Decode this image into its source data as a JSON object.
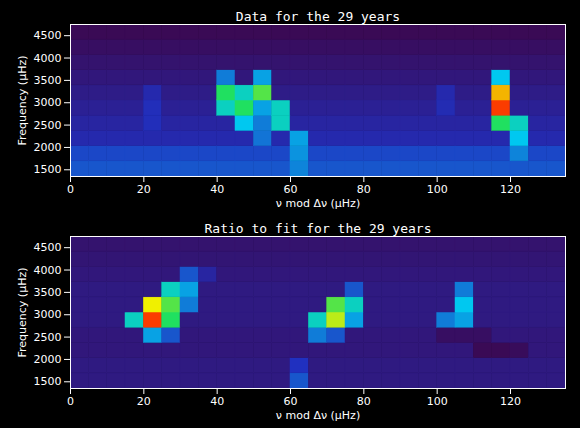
{
  "chart_data": [
    {
      "type": "heatmap",
      "title": "Data for the 29 years",
      "x_label": "ν mod Δν (μHz)",
      "y_label": "Frequency (μHz)",
      "xlim": [
        0,
        135
      ],
      "xticks": [
        0,
        20,
        40,
        60,
        80,
        100,
        120
      ],
      "ylim": [
        1350,
        4750
      ],
      "yticks": [
        1500,
        2000,
        2500,
        3000,
        3500,
        4000,
        4500
      ],
      "clim": [
        0,
        10
      ],
      "cells": {
        "x_edges": [
          0,
          5,
          10,
          15,
          20,
          25,
          30,
          35,
          40,
          45,
          50,
          55,
          60,
          65,
          70,
          75,
          80,
          85,
          90,
          95,
          100,
          105,
          110,
          115,
          120,
          125,
          130,
          135
        ],
        "y_edges": [
          1350,
          1690,
          2030,
          2370,
          2710,
          3050,
          3390,
          3730,
          4070,
          4410,
          4750
        ],
        "values": [
          [
            3,
            3,
            3,
            3,
            3,
            3,
            3,
            3,
            3,
            3,
            3,
            3,
            3.6,
            3,
            3,
            3,
            3,
            3,
            3,
            3,
            3,
            3,
            3,
            3,
            3,
            3,
            3
          ],
          [
            2.8,
            2.8,
            2.8,
            2.8,
            2.8,
            2.8,
            2.8,
            2.8,
            2.8,
            2.8,
            2.8,
            2.8,
            3.8,
            2.8,
            2.8,
            2.8,
            2.8,
            2.8,
            2.8,
            2.8,
            2.8,
            2.8,
            2.8,
            2.8,
            3.6,
            2.8,
            2.8
          ],
          [
            2.2,
            2.2,
            2.2,
            2.2,
            2.2,
            2.2,
            2.2,
            2.2,
            2.2,
            2.2,
            3.4,
            2.2,
            4,
            2.2,
            2.2,
            2.2,
            2.2,
            2.2,
            2.2,
            2.2,
            2.2,
            2.2,
            2.2,
            2.2,
            4.5,
            2.2,
            2.2
          ],
          [
            2,
            2,
            2,
            2,
            2.4,
            2,
            2,
            2,
            2,
            4.5,
            3.5,
            5,
            2,
            2,
            2,
            2,
            2,
            2,
            2,
            2,
            2,
            2,
            2,
            6,
            5,
            2,
            2
          ],
          [
            1.8,
            1.8,
            1.8,
            1.8,
            2.4,
            1.8,
            1.8,
            1.8,
            5,
            6,
            4,
            5,
            1.8,
            1.8,
            1.8,
            1.8,
            1.8,
            1.8,
            1.8,
            1.8,
            2.3,
            1.8,
            1.8,
            9.5,
            1.8,
            1.8,
            1.8
          ],
          [
            1.6,
            1.6,
            1.6,
            1.6,
            2.2,
            1.6,
            1.6,
            1.6,
            6,
            5,
            6.5,
            1.6,
            1.6,
            1.6,
            1.6,
            1.6,
            1.6,
            1.6,
            1.6,
            1.6,
            2.2,
            1.6,
            1.6,
            8.5,
            1.6,
            1.6,
            1.6
          ],
          [
            1.4,
            1.4,
            1.4,
            1.4,
            1.4,
            1.4,
            1.4,
            1.4,
            3.5,
            1.4,
            4,
            1.4,
            1.4,
            1.4,
            1.4,
            1.4,
            1.4,
            1.4,
            1.4,
            1.4,
            1.4,
            1.4,
            1.4,
            4.5,
            1.4,
            1.4,
            1.4
          ],
          [
            1.2,
            1.2,
            1.2,
            1.2,
            1.2,
            1.2,
            1.2,
            1.2,
            1.2,
            1.2,
            1.2,
            1.2,
            1.2,
            1.2,
            1.2,
            1.2,
            1.2,
            1.2,
            1.2,
            1.2,
            1.2,
            1.2,
            1.2,
            1.2,
            1.2,
            1.2,
            1.2
          ],
          [
            1,
            1,
            1,
            1,
            1,
            1,
            1,
            1,
            1,
            1,
            1,
            1,
            1,
            1,
            1,
            1,
            1,
            1,
            1,
            1,
            1,
            1,
            1,
            1,
            1,
            1,
            1
          ],
          [
            0.8,
            0.8,
            0.8,
            0.8,
            0.8,
            0.8,
            0.8,
            0.8,
            0.8,
            0.8,
            0.8,
            0.8,
            0.8,
            0.8,
            0.8,
            0.8,
            0.8,
            0.8,
            0.8,
            0.8,
            0.8,
            0.8,
            0.8,
            0.8,
            0.8,
            0.8,
            0.8
          ]
        ]
      }
    },
    {
      "type": "heatmap",
      "title": "Ratio to fit for the 29 years",
      "x_label": "ν mod Δν (μHz)",
      "y_label": "Frequency (μHz)",
      "xlim": [
        0,
        135
      ],
      "xticks": [
        0,
        20,
        40,
        60,
        80,
        100,
        120
      ],
      "ylim": [
        1350,
        4750
      ],
      "yticks": [
        1500,
        2000,
        2500,
        3000,
        3500,
        4000,
        4500
      ],
      "clim": [
        0,
        10
      ],
      "cells": {
        "x_edges": [
          0,
          5,
          10,
          15,
          20,
          25,
          30,
          35,
          40,
          45,
          50,
          55,
          60,
          65,
          70,
          75,
          80,
          85,
          90,
          95,
          100,
          105,
          110,
          115,
          120,
          125,
          130,
          135
        ],
        "y_edges": [
          1350,
          1690,
          2030,
          2370,
          2710,
          3050,
          3390,
          3730,
          4070,
          4410,
          4750
        ],
        "values": [
          [
            1.5,
            1.5,
            1.5,
            1.5,
            1.5,
            1.5,
            1.5,
            1.5,
            1.5,
            1.5,
            1.5,
            1.5,
            3,
            1.5,
            1.5,
            1.5,
            1.5,
            1.5,
            1.5,
            1.5,
            1.5,
            1.5,
            1.5,
            1.5,
            1.5,
            1.5,
            1.5
          ],
          [
            1.5,
            1.5,
            1.5,
            1.5,
            1.5,
            1.5,
            1.5,
            1.5,
            1.5,
            1.5,
            1.5,
            1.5,
            2.5,
            1.5,
            1.5,
            1.5,
            1.5,
            1.5,
            1.5,
            1.5,
            1.5,
            1.5,
            1.5,
            1.5,
            1.5,
            1.5,
            1.5
          ],
          [
            1.4,
            1.4,
            1.4,
            1.4,
            1.4,
            1.4,
            1.4,
            1.4,
            1.4,
            1.4,
            1.4,
            1.4,
            1.4,
            1.4,
            1.4,
            1.4,
            1.4,
            1.4,
            1.4,
            1.4,
            1.4,
            1.4,
            0.8,
            0.8,
            0.9,
            1.4,
            1.4
          ],
          [
            1.4,
            1.4,
            1.4,
            1.4,
            4,
            3,
            1.4,
            1.4,
            1.4,
            1.4,
            1.4,
            1.4,
            1.4,
            3.5,
            3,
            1.4,
            1.4,
            1.4,
            1.4,
            1.4,
            1,
            1,
            1,
            1.4,
            1.4,
            1.4,
            1.4
          ],
          [
            1.5,
            1.5,
            1.5,
            5,
            9.5,
            6,
            1.5,
            1.5,
            1.5,
            1.5,
            1.5,
            1.5,
            1.5,
            5,
            7.5,
            4,
            1.5,
            1.5,
            1.5,
            1.5,
            3.5,
            4,
            1.5,
            1.5,
            1.5,
            1.5,
            1.5
          ],
          [
            1.5,
            1.5,
            1.5,
            1.5,
            8,
            6.5,
            3.5,
            1.5,
            1.5,
            1.5,
            1.5,
            1.5,
            1.5,
            1.5,
            6.5,
            5,
            1.5,
            1.5,
            1.5,
            1.5,
            1.5,
            4.5,
            1.5,
            1.5,
            1.5,
            1.5,
            1.5
          ],
          [
            1.5,
            1.5,
            1.5,
            1.5,
            1.5,
            5,
            4,
            1.5,
            1.5,
            1.5,
            1.5,
            1.5,
            1.5,
            1.5,
            1.5,
            3,
            1.5,
            1.5,
            1.5,
            1.5,
            1.5,
            3.5,
            1.5,
            1.5,
            1.5,
            1.5,
            1.5
          ],
          [
            1.4,
            1.4,
            1.4,
            1.4,
            1.4,
            1.4,
            3,
            2,
            1.4,
            1.4,
            1.4,
            1.4,
            1.4,
            1.4,
            1.4,
            1.4,
            1.4,
            1.4,
            1.4,
            1.4,
            1.4,
            1.4,
            1.4,
            1.4,
            1.4,
            1.4,
            1.4
          ],
          [
            1.3,
            1.3,
            1.3,
            1.3,
            1.3,
            1.3,
            1.3,
            1.3,
            1.3,
            1.3,
            1.3,
            1.3,
            1.3,
            1.3,
            1.3,
            1.3,
            1.3,
            1.3,
            1.3,
            1.3,
            1.3,
            1.3,
            1.3,
            1.3,
            1.3,
            1.3,
            1.3
          ],
          [
            1.2,
            1.2,
            1.2,
            1.2,
            1.2,
            1.2,
            1.2,
            1.2,
            1.2,
            1.2,
            1.2,
            1.2,
            1.2,
            1.2,
            1.2,
            1.2,
            1.2,
            1.2,
            1.2,
            1.2,
            1.2,
            1.2,
            1.2,
            1.2,
            1.2,
            1.2,
            1.2
          ]
        ]
      }
    }
  ]
}
